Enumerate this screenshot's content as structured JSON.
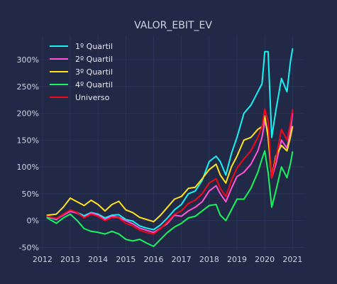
{
  "chart_data": {
    "type": "line",
    "title": "VALOR_EBIT_EV",
    "xlabel": "",
    "ylabel": "",
    "xlim": [
      2011.8,
      2021.4
    ],
    "ylim": [
      -0.56,
      3.45
    ],
    "x_ticks": [
      2012,
      2013,
      2014,
      2015,
      2016,
      2017,
      2018,
      2019,
      2020,
      2021
    ],
    "x_tick_labels": [
      "2012",
      "2013",
      "2014",
      "2015",
      "2016",
      "2017",
      "2018",
      "2019",
      "2020",
      "2021"
    ],
    "y_ticks": [
      -0.5,
      0,
      0.5,
      1.0,
      1.5,
      2.0,
      2.5,
      3.0
    ],
    "y_tick_labels": [
      "-50%",
      "0%",
      "50%",
      "100%",
      "150%",
      "200%",
      "250%",
      "300%"
    ],
    "grid": true,
    "legend_position": "top-left",
    "series": [
      {
        "name": "1º Quartil",
        "color": "#18F2F2",
        "x": [
          2012.17,
          2012.5,
          2012.75,
          2013.0,
          2013.25,
          2013.5,
          2013.75,
          2014.0,
          2014.25,
          2014.5,
          2014.75,
          2015.0,
          2015.25,
          2015.5,
          2015.75,
          2016.0,
          2016.25,
          2016.5,
          2016.75,
          2017.0,
          2017.25,
          2017.5,
          2017.75,
          2018.0,
          2018.25,
          2018.4,
          2018.6,
          2018.8,
          2019.0,
          2019.25,
          2019.5,
          2019.75,
          2019.9,
          2020.0,
          2020.12,
          2020.25,
          2020.4,
          2020.6,
          2020.8,
          2020.92,
          2021.0
        ],
        "y": [
          0.07,
          0.02,
          0.12,
          0.18,
          0.15,
          0.09,
          0.15,
          0.12,
          0.05,
          0.1,
          0.11,
          0.02,
          -0.01,
          -0.1,
          -0.14,
          -0.17,
          -0.08,
          0.05,
          0.2,
          0.3,
          0.5,
          0.55,
          0.75,
          1.1,
          1.2,
          1.1,
          0.85,
          1.25,
          1.55,
          2.0,
          2.15,
          2.4,
          2.55,
          3.15,
          3.15,
          1.55,
          2.05,
          2.65,
          2.4,
          2.95,
          3.2
        ]
      },
      {
        "name": "2º Quartil",
        "color": "#FF55D8",
        "x": [
          2012.17,
          2012.5,
          2012.75,
          2013.0,
          2013.25,
          2013.5,
          2013.75,
          2014.0,
          2014.25,
          2014.5,
          2014.75,
          2015.0,
          2015.25,
          2015.5,
          2015.75,
          2016.0,
          2016.25,
          2016.5,
          2016.75,
          2017.0,
          2017.25,
          2017.5,
          2017.75,
          2018.0,
          2018.25,
          2018.4,
          2018.6,
          2018.8,
          2019.0,
          2019.25,
          2019.5,
          2019.75,
          2019.9,
          2020.0,
          2020.12,
          2020.25,
          2020.4,
          2020.6,
          2020.8,
          2020.92,
          2021.0
        ],
        "y": [
          0.08,
          0.03,
          0.1,
          0.17,
          0.14,
          0.06,
          0.14,
          0.1,
          0.02,
          0.08,
          0.06,
          0.0,
          -0.06,
          -0.14,
          -0.18,
          -0.22,
          -0.14,
          -0.05,
          0.1,
          0.08,
          0.18,
          0.25,
          0.35,
          0.55,
          0.65,
          0.5,
          0.35,
          0.6,
          0.82,
          0.9,
          1.05,
          1.3,
          1.55,
          1.85,
          1.65,
          0.8,
          1.05,
          1.5,
          1.35,
          1.65,
          2.0
        ]
      },
      {
        "name": "3º Quartil",
        "color": "#FFE21A",
        "x": [
          2012.17,
          2012.5,
          2012.75,
          2013.0,
          2013.25,
          2013.5,
          2013.75,
          2014.0,
          2014.25,
          2014.5,
          2014.75,
          2015.0,
          2015.25,
          2015.5,
          2015.75,
          2016.0,
          2016.25,
          2016.5,
          2016.75,
          2017.0,
          2017.25,
          2017.5,
          2017.75,
          2018.0,
          2018.25,
          2018.4,
          2018.6,
          2018.8,
          2019.0,
          2019.25,
          2019.5,
          2019.75,
          2019.9,
          2020.0,
          2020.12,
          2020.25,
          2020.4,
          2020.6,
          2020.8,
          2020.92,
          2021.0
        ],
        "y": [
          0.1,
          0.12,
          0.25,
          0.42,
          0.35,
          0.28,
          0.38,
          0.3,
          0.18,
          0.3,
          0.36,
          0.2,
          0.15,
          0.06,
          0.02,
          -0.02,
          0.1,
          0.25,
          0.4,
          0.45,
          0.6,
          0.62,
          0.78,
          0.95,
          1.05,
          0.85,
          0.7,
          1.0,
          1.2,
          1.5,
          1.55,
          1.7,
          1.75,
          1.95,
          1.55,
          0.8,
          1.2,
          1.4,
          1.3,
          1.55,
          1.75
        ]
      },
      {
        "name": "4º Quartil",
        "color": "#19F55C",
        "x": [
          2012.17,
          2012.5,
          2012.75,
          2013.0,
          2013.25,
          2013.5,
          2013.75,
          2014.0,
          2014.25,
          2014.5,
          2014.75,
          2015.0,
          2015.25,
          2015.5,
          2015.75,
          2016.0,
          2016.25,
          2016.5,
          2016.75,
          2017.0,
          2017.25,
          2017.5,
          2017.75,
          2018.0,
          2018.25,
          2018.4,
          2018.6,
          2018.8,
          2019.0,
          2019.25,
          2019.5,
          2019.75,
          2019.9,
          2020.0,
          2020.12,
          2020.25,
          2020.4,
          2020.6,
          2020.8,
          2020.92,
          2021.0
        ],
        "y": [
          0.05,
          -0.05,
          0.05,
          0.12,
          0.0,
          -0.15,
          -0.2,
          -0.22,
          -0.25,
          -0.2,
          -0.25,
          -0.35,
          -0.38,
          -0.35,
          -0.42,
          -0.48,
          -0.35,
          -0.22,
          -0.12,
          -0.05,
          0.05,
          0.08,
          0.18,
          0.28,
          0.3,
          0.1,
          0.0,
          0.2,
          0.4,
          0.4,
          0.6,
          0.9,
          1.15,
          1.3,
          0.9,
          0.25,
          0.55,
          1.0,
          0.8,
          1.05,
          1.28
        ]
      },
      {
        "name": "Universo",
        "color": "#F2071B",
        "x": [
          2012.17,
          2012.5,
          2012.75,
          2013.0,
          2013.25,
          2013.5,
          2013.75,
          2014.0,
          2014.25,
          2014.5,
          2014.75,
          2015.0,
          2015.25,
          2015.5,
          2015.75,
          2016.0,
          2016.25,
          2016.5,
          2016.75,
          2017.0,
          2017.25,
          2017.5,
          2017.75,
          2018.0,
          2018.25,
          2018.4,
          2018.6,
          2018.8,
          2019.0,
          2019.25,
          2019.5,
          2019.75,
          2019.9,
          2020.0,
          2020.12,
          2020.25,
          2020.4,
          2020.6,
          2020.8,
          2020.92,
          2021.0
        ],
        "y": [
          0.08,
          0.04,
          0.12,
          0.2,
          0.15,
          0.05,
          0.12,
          0.08,
          0.0,
          0.06,
          0.05,
          -0.05,
          -0.1,
          -0.18,
          -0.22,
          -0.25,
          -0.15,
          -0.02,
          0.12,
          0.18,
          0.32,
          0.38,
          0.5,
          0.7,
          0.78,
          0.6,
          0.45,
          0.75,
          0.98,
          1.15,
          1.3,
          1.55,
          1.75,
          2.08,
          1.85,
          0.8,
          1.15,
          1.7,
          1.5,
          1.8,
          2.07
        ]
      }
    ]
  }
}
